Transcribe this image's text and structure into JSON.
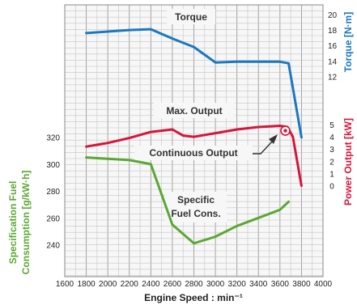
{
  "chart_data": {
    "type": "line",
    "xlabel": "Engine Speed : min⁻¹",
    "xlim": [
      1600,
      4000
    ],
    "x_ticks": [
      1600,
      1800,
      2000,
      2200,
      2400,
      2600,
      2800,
      3000,
      3200,
      3400,
      3600,
      3800,
      4000
    ],
    "axes": {
      "torque": {
        "label": "Torque [N·m]",
        "ticks": [
          12,
          14,
          16,
          18,
          20
        ],
        "color": "#1a78c2"
      },
      "power": {
        "label": "Power Output [kW]",
        "ticks": [
          0,
          1,
          2,
          3,
          4,
          5
        ],
        "color": "#d6153a"
      },
      "fuel": {
        "label_line1": "Specification Fuel",
        "label_line2": "Consumption [g/kW·h]",
        "ticks": [
          240,
          260,
          280,
          300,
          320
        ],
        "color": "#5aa832"
      }
    },
    "series": [
      {
        "name": "Torque",
        "axis": "torque",
        "color": "#1a78c2",
        "x": [
          1800,
          2000,
          2200,
          2400,
          2600,
          2800,
          3000,
          3200,
          3400,
          3600,
          3680,
          3800
        ],
        "y": [
          17.6,
          17.8,
          18.0,
          18.1,
          16.9,
          15.8,
          13.8,
          13.9,
          13.9,
          13.9,
          13.7,
          4.1
        ]
      },
      {
        "name": "Max. Output",
        "axis": "power",
        "color": "#d6153a",
        "x": [
          1800,
          2000,
          2200,
          2400,
          2600,
          2700,
          2800,
          3000,
          3200,
          3400,
          3600,
          3670,
          3720,
          3800
        ],
        "y": [
          3.2,
          3.5,
          3.9,
          4.4,
          4.6,
          4.1,
          4.0,
          4.3,
          4.6,
          4.8,
          4.9,
          4.8,
          4.0,
          0.0
        ]
      },
      {
        "name": "Specific Fuel Cons.",
        "axis": "fuel",
        "color": "#5aa832",
        "x": [
          1800,
          2000,
          2200,
          2400,
          2600,
          2800,
          3000,
          3200,
          3400,
          3600,
          3680
        ],
        "y": [
          305,
          304,
          303,
          300,
          255,
          241,
          246,
          254,
          260,
          266,
          272
        ]
      }
    ],
    "continuous_output": {
      "x": 3650,
      "y": 4.5
    },
    "annotations": {
      "torque": "Torque",
      "max_output": "Max. Output",
      "continuous_output": "Continuous Output",
      "specific_line1": "Specific",
      "specific_line2": "Fuel Cons."
    }
  }
}
